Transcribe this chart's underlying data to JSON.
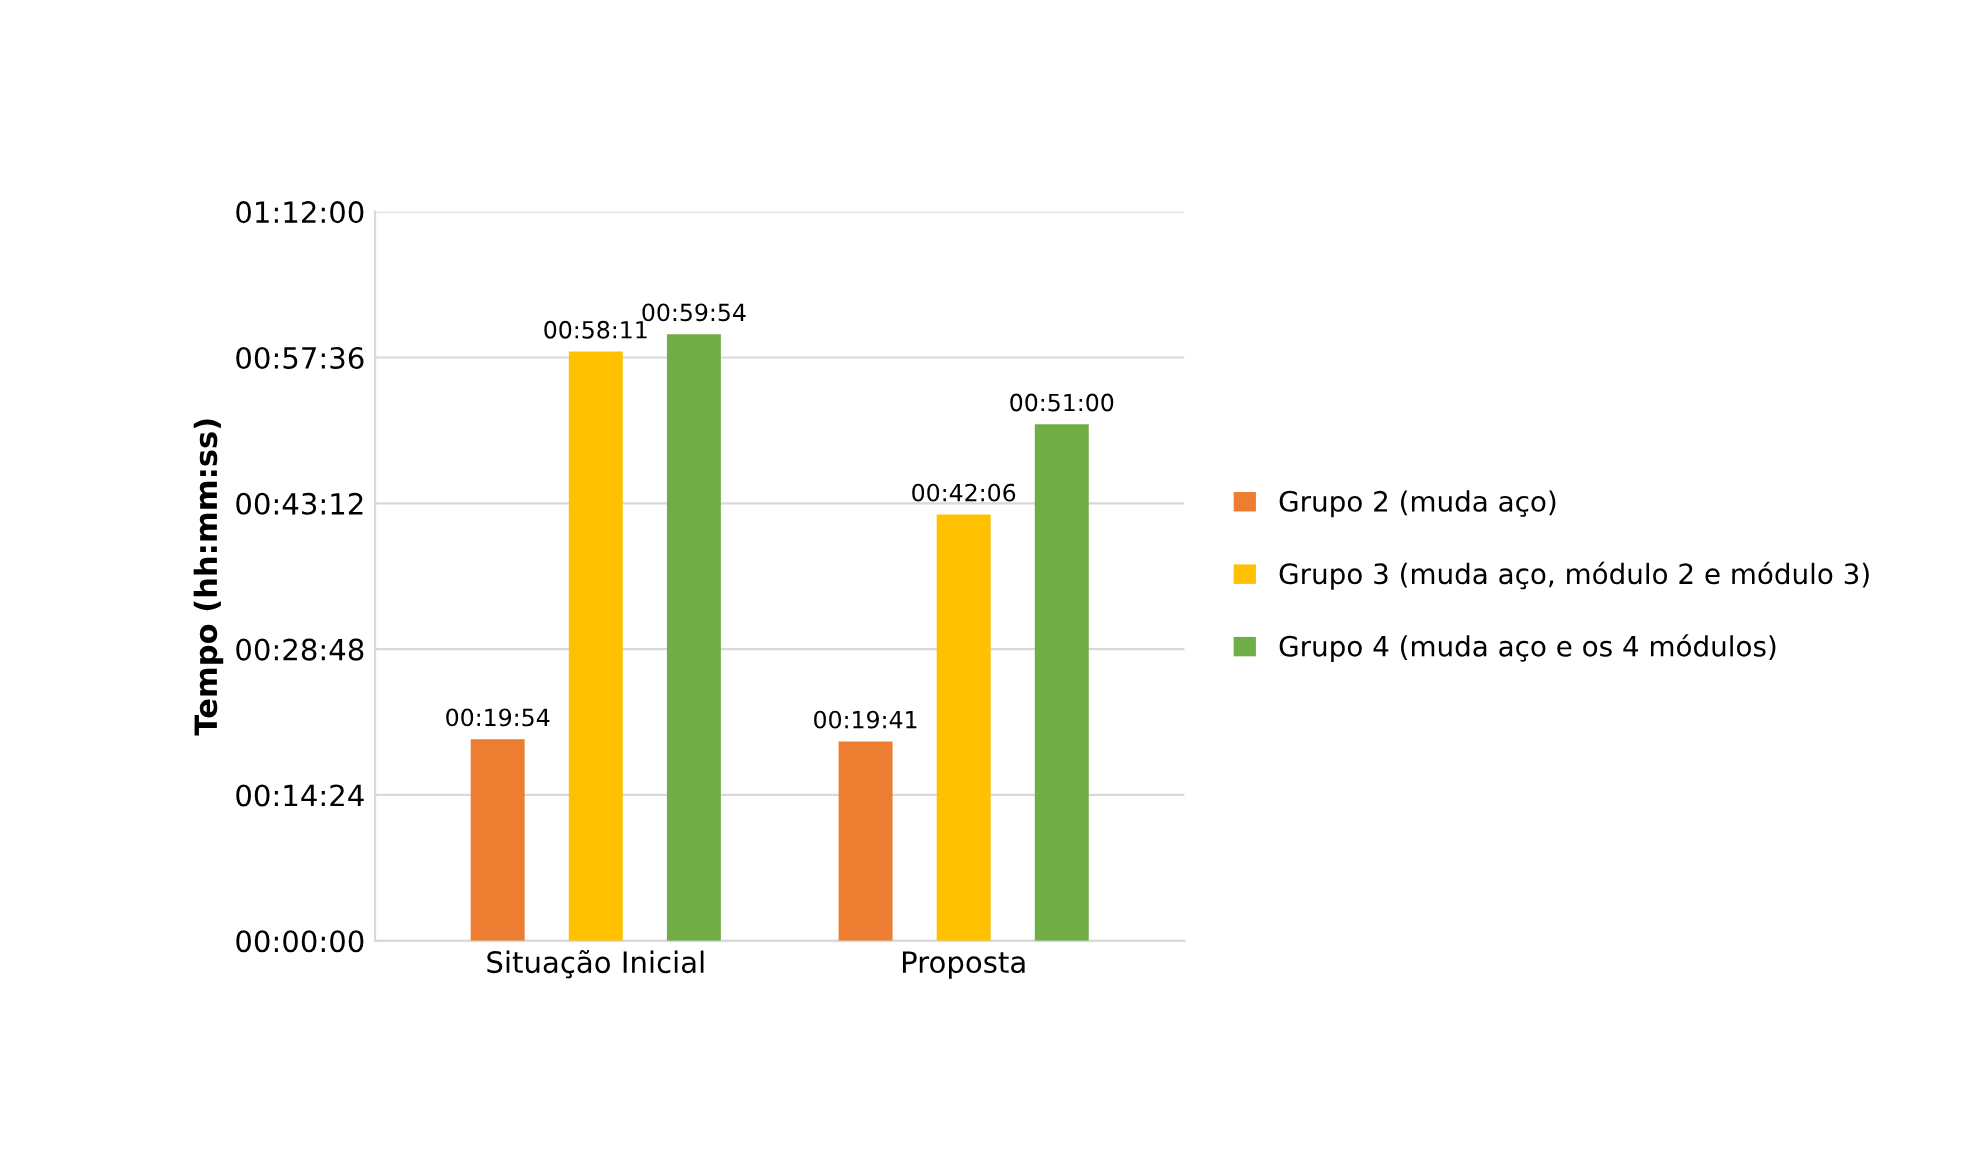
{
  "chart_data": {
    "type": "bar",
    "ylabel": "Tempo (hh:mm:ss)",
    "categories": [
      "Situação Inicial",
      "Proposta"
    ],
    "series": [
      {
        "name": "Grupo 2 (muda aço)",
        "color": "#ed7d31",
        "values": [
          19.9,
          19.683
        ],
        "value_labels": [
          "00:19:54",
          "00:19:41"
        ]
      },
      {
        "name": "Grupo 3 (muda aço, módulo 2 e módulo 3)",
        "color": "#ffc000",
        "values": [
          58.183,
          42.1
        ],
        "value_labels": [
          "00:58:11",
          "00:42:06"
        ]
      },
      {
        "name": "Grupo 4 (muda aço e os 4 módulos)",
        "color": "#70ad47",
        "values": [
          59.9,
          51.0
        ],
        "value_labels": [
          "00:59:54",
          "00:51:00"
        ]
      }
    ],
    "ylim": [
      0,
      72
    ],
    "yticks": [
      {
        "value": 0,
        "label": "00:00:00"
      },
      {
        "value": 14.4,
        "label": "00:14:24"
      },
      {
        "value": 28.8,
        "label": "00:28:48"
      },
      {
        "value": 43.2,
        "label": "00:43:12"
      },
      {
        "value": 57.6,
        "label": "00:57:36"
      },
      {
        "value": 72,
        "label": "01:12:00"
      }
    ],
    "grid": "y",
    "legend": "right"
  }
}
